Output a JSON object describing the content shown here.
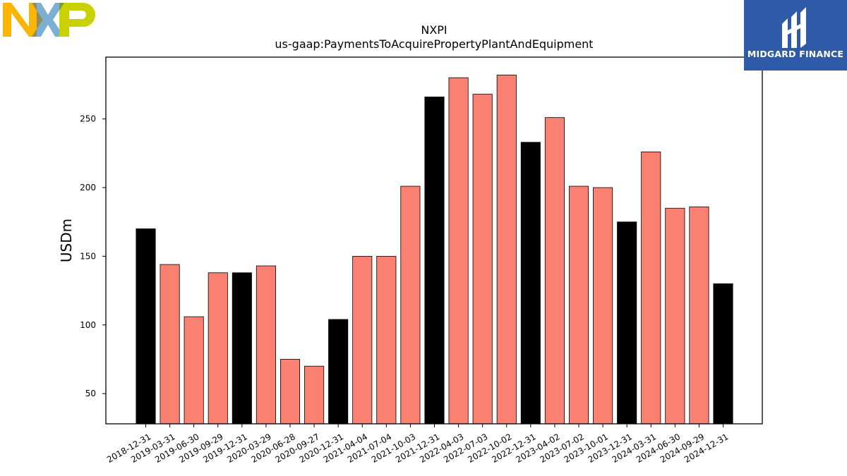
{
  "brand": {
    "company_logo": "NXP",
    "publisher": "MIDGARD FINANCE"
  },
  "chart_data": {
    "type": "bar",
    "title": "NXPI",
    "subtitle": "us-gaap:PaymentsToAcquirePropertyPlantAndEquipment",
    "xlabel": "",
    "ylabel": "USDm",
    "ylim": [
      28,
      295
    ],
    "yticks": [
      50,
      100,
      150,
      200,
      250
    ],
    "grid": false,
    "categories": [
      "2018-12-31",
      "2019-03-31",
      "2019-06-30",
      "2019-09-29",
      "2019-12-31",
      "2020-03-29",
      "2020-06-28",
      "2020-09-27",
      "2020-12-31",
      "2021-04-04",
      "2021-07-04",
      "2021-10-03",
      "2021-12-31",
      "2022-04-03",
      "2022-07-03",
      "2022-10-02",
      "2022-12-31",
      "2023-04-02",
      "2023-07-02",
      "2023-10-01",
      "2023-12-31",
      "2024-03-31",
      "2024-06-30",
      "2024-09-29",
      "2024-12-31"
    ],
    "values": [
      170,
      144,
      106,
      138,
      138,
      143,
      75,
      70,
      104,
      150,
      150,
      201,
      266,
      280,
      268,
      282,
      233,
      251,
      201,
      200,
      175,
      226,
      185,
      186,
      130
    ],
    "colors": {
      "quarter": "#fa8072",
      "year_end": "#000000"
    },
    "year_end_flags": [
      true,
      false,
      false,
      false,
      true,
      false,
      false,
      false,
      true,
      false,
      false,
      false,
      true,
      false,
      false,
      false,
      true,
      false,
      false,
      false,
      true,
      false,
      false,
      false,
      true
    ]
  }
}
